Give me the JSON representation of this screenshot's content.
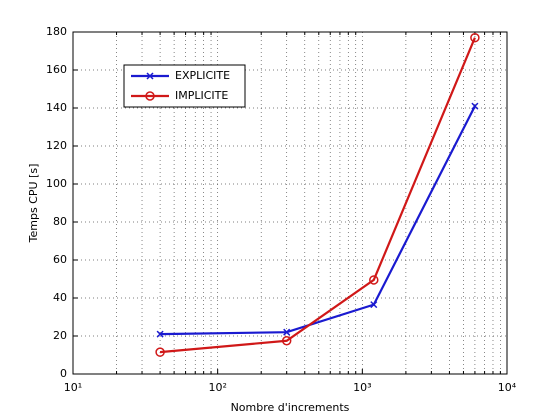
{
  "chart_data": {
    "type": "line",
    "xlabel": "Nombre d'increments",
    "ylabel": "Temps CPU [s]",
    "x": [
      40,
      300,
      1200,
      6000
    ],
    "series": [
      {
        "name": "EXPLICITE",
        "color": "#1a1ad0",
        "marker": "x",
        "values": [
          21,
          22,
          36.5,
          141
        ]
      },
      {
        "name": "IMPLICITE",
        "color": "#d01818",
        "marker": "o",
        "values": [
          11.5,
          17.5,
          49.5,
          177
        ]
      }
    ],
    "xscale": "log",
    "xlim": [
      10,
      10000
    ],
    "xticks": [
      {
        "value": 10,
        "label": "10¹"
      },
      {
        "value": 100,
        "label": "10²"
      },
      {
        "value": 1000,
        "label": "10³"
      },
      {
        "value": 10000,
        "label": "10⁴"
      }
    ],
    "ylim": [
      0,
      180
    ],
    "yticks": [
      0,
      20,
      40,
      60,
      80,
      100,
      120,
      140,
      160,
      180
    ],
    "grid": true,
    "minor_grid": true,
    "legend": "upper-left"
  }
}
